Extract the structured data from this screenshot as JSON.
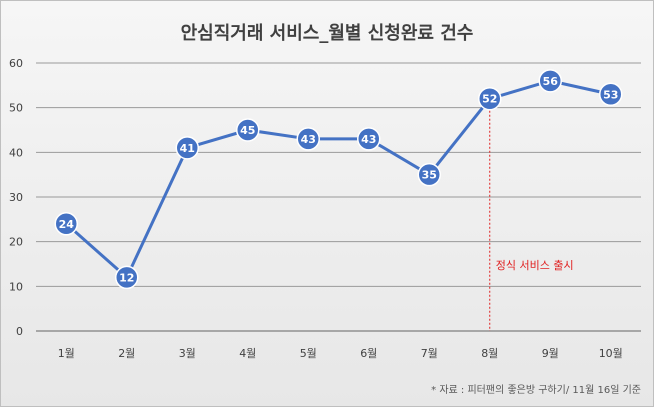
{
  "chart_data": {
    "type": "line",
    "title": "안심직거래 서비스_월별 신청완료 건수",
    "categories": [
      "1월",
      "2월",
      "3월",
      "4월",
      "5월",
      "6월",
      "7월",
      "8월",
      "9월",
      "10월"
    ],
    "series": [
      {
        "values": [
          24,
          12,
          41,
          45,
          43,
          43,
          35,
          52,
          56,
          53
        ]
      }
    ],
    "ylim": [
      0,
      60
    ],
    "yticks": [
      0,
      10,
      20,
      30,
      40,
      50,
      60
    ],
    "grid": true,
    "data_labels": true,
    "annotation": {
      "text": "정식 서비스 출시",
      "at_category": "8월"
    },
    "source": "* 자료 : 피터팬의 좋은방 구하기/ 11월 16일 기준",
    "colors": {
      "line": "#4472c4",
      "annotation": "#e02020",
      "grid": "#9a9a9a"
    }
  }
}
